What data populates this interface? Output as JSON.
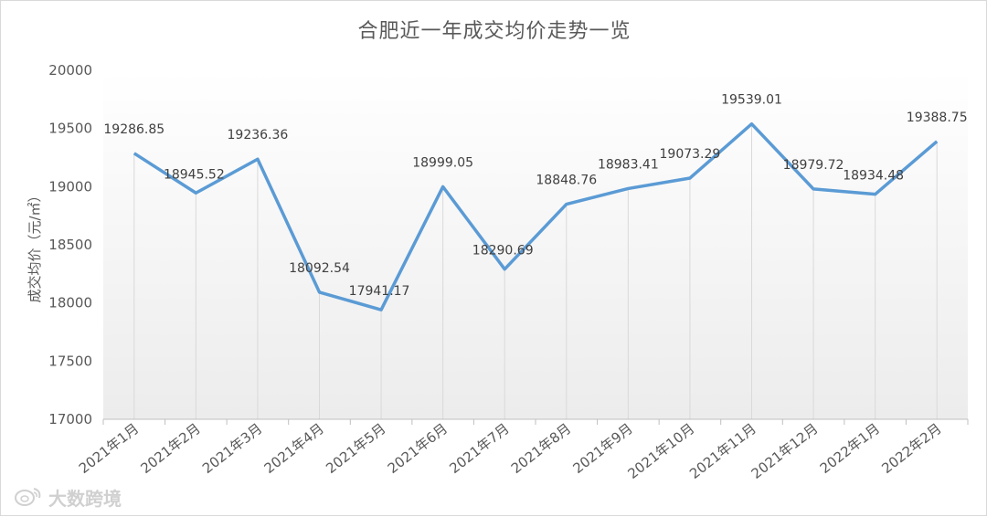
{
  "chart_data": {
    "type": "line",
    "title": "合肥近一年成交均价走势一览",
    "ylabel": "成交均价（元/㎡）",
    "xlabel": "",
    "categories": [
      "2021年1月",
      "2021年2月",
      "2021年3月",
      "2021年4月",
      "2021年5月",
      "2021年6月",
      "2021年7月",
      "2021年8月",
      "2021年9月",
      "2021年10月",
      "2021年11月",
      "2021年12月",
      "2022年1月",
      "2022年2月"
    ],
    "series": [
      {
        "values": [
          19286.85,
          18945.52,
          19236.36,
          18092.54,
          17941.17,
          18999.05,
          18290.69,
          18848.76,
          18983.41,
          19073.29,
          19539.01,
          18979.72,
          18934.48,
          19388.75
        ]
      }
    ],
    "data_labels": [
      "19286.85",
      "18945.52",
      "19236.36",
      "18092.54",
      "17941.17",
      "18999.05",
      "18290.69",
      "18848.76",
      "18983.41",
      "19073.29",
      "19539.01",
      "18979.72",
      "18934.48",
      "19388.75"
    ],
    "ylim": [
      17000,
      20000
    ],
    "y_ticks": [
      "17000",
      "17500",
      "18000",
      "18500",
      "19000",
      "19500",
      "20000"
    ],
    "grid": "vertical drop lines at each category",
    "legend": "none",
    "line_color": "#5b9bd5"
  },
  "watermark": {
    "text": "大数跨境",
    "icon": "weibo-logo-icon"
  }
}
